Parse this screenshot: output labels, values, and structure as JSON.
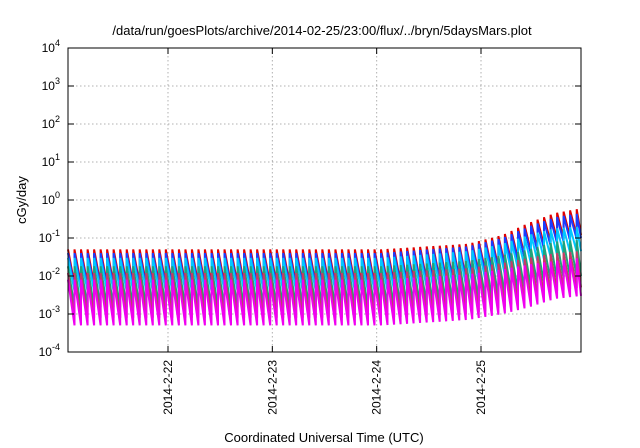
{
  "chart_data": {
    "type": "line",
    "title": "/data/run/goesPlots/archive/2014-02-25/23:00/flux/../bryn/5daysMars.plot",
    "xlabel": "Coordinated Universal Time (UTC)",
    "ylabel": "cGy/day",
    "yscale": "log",
    "ylim": [
      0.0001,
      10000
    ],
    "xlim": [
      "2014-02-21 01:00",
      "2014-02-25 23:00"
    ],
    "y_ticks": [
      {
        "base": "10",
        "exp": "-4",
        "value": 0.0001
      },
      {
        "base": "10",
        "exp": "-3",
        "value": 0.001
      },
      {
        "base": "10",
        "exp": "-2",
        "value": 0.01
      },
      {
        "base": "10",
        "exp": "-1",
        "value": 0.1
      },
      {
        "base": "10",
        "exp": "0",
        "value": 1
      },
      {
        "base": "10",
        "exp": "1",
        "value": 10
      },
      {
        "base": "10",
        "exp": "2",
        "value": 100
      },
      {
        "base": "10",
        "exp": "3",
        "value": 1000
      },
      {
        "base": "10",
        "exp": "4",
        "value": 10000
      }
    ],
    "x_ticks": [
      {
        "label": "2014-2-22",
        "value": "2014-02-22 00:00"
      },
      {
        "label": "2014-2-23",
        "value": "2014-02-23 00:00"
      },
      {
        "label": "2014-2-24",
        "value": "2014-02-24 00:00"
      },
      {
        "label": "2014-2-25",
        "value": "2014-02-25 00:00"
      }
    ],
    "grid": true,
    "legend": "none",
    "sawtooth_period_hours": 1.5,
    "series": [
      {
        "color": "#e00000",
        "peak": [
          0.05,
          0.05,
          0.05,
          0.05,
          0.07,
          0.12,
          0.25,
          0.45,
          0.6
        ],
        "trough": [
          0.006,
          0.006,
          0.006,
          0.006,
          0.009,
          0.018,
          0.04,
          0.09,
          0.12
        ]
      },
      {
        "color": "#1a3cff",
        "peak": [
          0.04,
          0.04,
          0.04,
          0.04,
          0.06,
          0.1,
          0.2,
          0.35,
          0.45
        ],
        "trough": [
          0.005,
          0.005,
          0.005,
          0.005,
          0.008,
          0.015,
          0.035,
          0.07,
          0.1
        ]
      },
      {
        "color": "#00c8ff",
        "peak": [
          0.03,
          0.03,
          0.03,
          0.03,
          0.045,
          0.07,
          0.12,
          0.18,
          0.2
        ],
        "trough": [
          0.004,
          0.004,
          0.004,
          0.004,
          0.006,
          0.01,
          0.02,
          0.035,
          0.045
        ]
      },
      {
        "color": "#1fa37a",
        "peak": [
          0.018,
          0.018,
          0.018,
          0.018,
          0.025,
          0.035,
          0.05,
          0.08,
          0.09
        ],
        "trough": [
          0.0015,
          0.0015,
          0.0015,
          0.0015,
          0.002,
          0.003,
          0.005,
          0.008,
          0.01
        ]
      },
      {
        "color": "#c43c66",
        "peak": [
          0.012,
          0.012,
          0.012,
          0.012,
          0.016,
          0.022,
          0.03,
          0.04,
          0.045
        ],
        "trough": [
          0.0008,
          0.0008,
          0.0008,
          0.0008,
          0.001,
          0.0015,
          0.0025,
          0.004,
          0.005
        ]
      },
      {
        "color": "#f000f0",
        "peak": [
          0.008,
          0.008,
          0.008,
          0.008,
          0.011,
          0.015,
          0.02,
          0.025,
          0.03
        ],
        "trough": [
          0.0005,
          0.0005,
          0.0005,
          0.0005,
          0.0007,
          0.001,
          0.0015,
          0.0025,
          0.003
        ]
      }
    ],
    "envelope_hours": [
      0,
      24,
      48,
      72,
      92,
      100,
      106,
      112,
      118
    ]
  }
}
